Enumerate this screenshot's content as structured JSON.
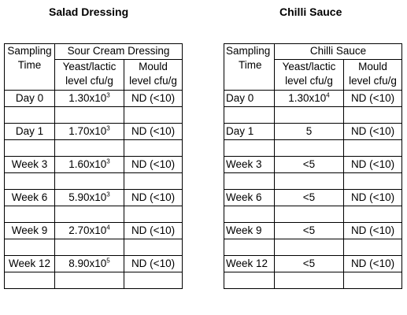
{
  "left": {
    "title": "Salad Dressing",
    "col_time_header": "Sampling Time",
    "col_time_line1": "Sampling",
    "col_time_line2": "Time",
    "group_header": "Sour Cream Dressing",
    "col_yeast_line1": "Yeast/lactic",
    "col_yeast_line2": "level cfu/g",
    "col_mould_line1": "Mould",
    "col_mould_line2": "level cfu/g",
    "rows": [
      {
        "time": "Day 0",
        "yeast_base": "1.30x10",
        "yeast_exp": "3",
        "mould": "ND (<10)"
      },
      {
        "time": "Day 1",
        "yeast_base": "1.70x10",
        "yeast_exp": "3",
        "mould": "ND (<10)"
      },
      {
        "time": "Week 3",
        "yeast_base": "1.60x10",
        "yeast_exp": "3",
        "mould": "ND (<10)"
      },
      {
        "time": "Week 6",
        "yeast_base": "5.90x10",
        "yeast_exp": "3",
        "mould": "ND (<10)"
      },
      {
        "time": "Week 9",
        "yeast_base": "2.70x10",
        "yeast_exp": "4",
        "mould": "ND (<10)"
      },
      {
        "time": "Week 12",
        "yeast_base": "8.90x10",
        "yeast_exp": "5",
        "mould": "ND (<10)"
      }
    ]
  },
  "right": {
    "title": "Chilli Sauce",
    "col_time_line1": "Sampling",
    "col_time_line2": "Time",
    "group_header": "Chilli Sauce",
    "col_yeast_line1": "Yeast/lactic",
    "col_yeast_line2": "level cfu/g",
    "col_mould_line1": "Mould",
    "col_mould_line2": "level cfu/g",
    "rows": [
      {
        "time": "Day 0",
        "yeast_base": "1.30x10",
        "yeast_exp": "4",
        "mould": "ND (<10)"
      },
      {
        "time": "Day 1",
        "yeast_base": "5",
        "yeast_exp": "",
        "mould": "ND (<10)"
      },
      {
        "time": "Week 3",
        "yeast_base": "<5",
        "yeast_exp": "",
        "mould": "ND (<10)"
      },
      {
        "time": "Week 6",
        "yeast_base": "<5",
        "yeast_exp": "",
        "mould": "ND (<10)"
      },
      {
        "time": "Week 9",
        "yeast_base": "<5",
        "yeast_exp": "",
        "mould": "ND (<10)"
      },
      {
        "time": "Week 12",
        "yeast_base": "<5",
        "yeast_exp": "",
        "mould": "ND (<10)"
      }
    ]
  }
}
